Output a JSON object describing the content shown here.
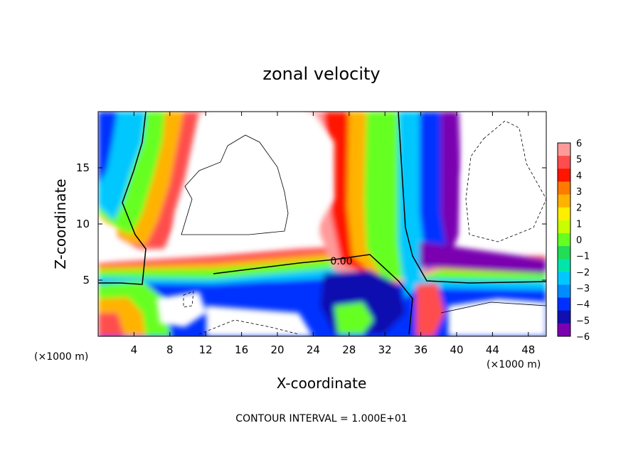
{
  "chart_data": {
    "type": "heatmap",
    "title": "zonal velocity",
    "xlabel": "X-coordinate",
    "ylabel": "Z-coordinate",
    "x_unit_label": "(×1000 m)",
    "y_unit_label": "(×1000 m)",
    "footer": "CONTOUR INTERVAL = 1.000E+01",
    "contour_label": "0.00",
    "xlim": [
      0,
      50
    ],
    "ylim": [
      0,
      20
    ],
    "x_ticks": [
      "4",
      "8",
      "12",
      "16",
      "20",
      "24",
      "28",
      "32",
      "36",
      "40",
      "44",
      "48"
    ],
    "y_ticks": [
      "5",
      "10",
      "15"
    ],
    "colorbar": {
      "levels": [
        "6",
        "5",
        "4",
        "3",
        "2",
        "1",
        "0",
        "−1",
        "−2",
        "−3",
        "−4",
        "−5",
        "−6"
      ],
      "colors": [
        "#ff9a9a",
        "#ff4d4d",
        "#ff1500",
        "#ff7a00",
        "#ffb300",
        "#ffee00",
        "#c8ff00",
        "#66ff22",
        "#22dd55",
        "#00e6aa",
        "#00c8ff",
        "#008cff",
        "#0030ff",
        "#1010b0",
        "#7a00b0"
      ]
    }
  }
}
